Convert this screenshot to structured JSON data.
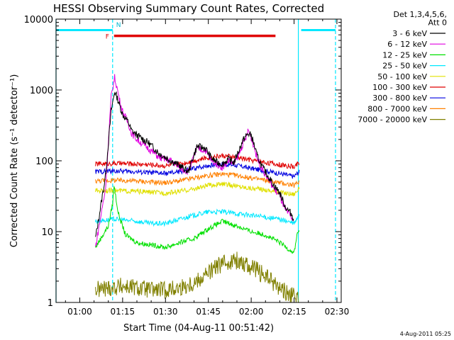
{
  "chart_data": {
    "type": "line",
    "title": "HESSI Observing Summary Count Rates, Corrected",
    "xlabel": "Start Time (04-Aug-11 00:51:42)",
    "ylabel": "Corrected Count Rate (s⁻¹ detector⁻¹)",
    "yscale": "log",
    "ylim": [
      1,
      10000
    ],
    "xlim_min": [
      51.7,
      151.5
    ],
    "xticks": [
      {
        "v": 60,
        "label": "01:00"
      },
      {
        "v": 75,
        "label": "01:15"
      },
      {
        "v": 90,
        "label": "01:30"
      },
      {
        "v": 105,
        "label": "01:45"
      },
      {
        "v": 120,
        "label": "02:00"
      },
      {
        "v": 135,
        "label": "02:15"
      },
      {
        "v": 150,
        "label": "02:30"
      }
    ],
    "yticks": [
      {
        "v": 1,
        "label": "1"
      },
      {
        "v": 10,
        "label": "10"
      },
      {
        "v": 100,
        "label": "100"
      },
      {
        "v": 1000,
        "label": "1000"
      },
      {
        "v": 10000,
        "label": "10000"
      }
    ],
    "legend_header": [
      "Det 1,3,4,5,6,",
      "Att 0"
    ],
    "legend_placement": "right",
    "series": [
      {
        "name": "3 - 6 keV",
        "color": "#000000",
        "x": [
          65.5,
          69,
          71,
          72.2,
          73,
          74,
          75,
          77,
          78,
          80,
          84,
          88,
          92,
          95,
          98,
          101,
          104,
          106,
          108,
          110,
          112,
          114,
          116,
          117,
          118,
          119,
          120,
          121,
          122,
          124,
          126,
          128,
          130,
          131,
          132,
          134,
          135
        ],
        "y": [
          8,
          60,
          500,
          950,
          800,
          600,
          450,
          350,
          270,
          230,
          180,
          125,
          100,
          85,
          70,
          160,
          150,
          110,
          95,
          90,
          105,
          95,
          150,
          190,
          220,
          240,
          230,
          170,
          120,
          80,
          60,
          45,
          35,
          28,
          22,
          18,
          15
        ]
      },
      {
        "name": "6 - 12 keV",
        "color": "#e100e1",
        "x": [
          65.5,
          69,
          71,
          72.2,
          73,
          74,
          75,
          77,
          78,
          80,
          84,
          88,
          92,
          95,
          98,
          101,
          104,
          106,
          108,
          110,
          112,
          114,
          116,
          117,
          118,
          119,
          120,
          121,
          122,
          124,
          126,
          128,
          130,
          131,
          132,
          134,
          135
        ],
        "y": [
          6,
          40,
          800,
          1500,
          1100,
          700,
          500,
          340,
          250,
          200,
          150,
          110,
          100,
          80,
          70,
          150,
          140,
          100,
          90,
          80,
          100,
          90,
          130,
          170,
          200,
          270,
          210,
          160,
          110,
          75,
          55,
          40,
          32,
          25,
          20,
          16,
          14
        ]
      },
      {
        "name": "12 - 25 keV",
        "color": "#00e000",
        "x": [
          65.5,
          70,
          71.5,
          72,
          73.5,
          76,
          80,
          85,
          90,
          95,
          100,
          105,
          110,
          115,
          120,
          125,
          130,
          135,
          136,
          137
        ],
        "y": [
          6,
          12,
          25,
          45,
          18,
          9,
          7,
          6.5,
          6,
          7,
          8,
          11,
          14,
          12,
          10,
          9,
          7,
          5,
          9,
          11
        ]
      },
      {
        "name": "25 - 50 keV",
        "color": "#00e8ff",
        "x": [
          65.5,
          72,
          80,
          85,
          90,
          95,
          100,
          105,
          110,
          115,
          120,
          125,
          130,
          135,
          136,
          137
        ],
        "y": [
          14,
          15,
          14,
          13,
          13,
          15,
          17,
          19,
          19,
          18,
          17,
          16,
          15,
          13,
          15,
          17
        ]
      },
      {
        "name": "50 - 100 keV",
        "color": "#e0e000",
        "x": [
          65.5,
          72,
          80,
          85,
          90,
          95,
          100,
          105,
          110,
          115,
          120,
          125,
          130,
          135,
          136,
          137
        ],
        "y": [
          38,
          38,
          37,
          36,
          35,
          37,
          40,
          45,
          47,
          44,
          41,
          39,
          36,
          34,
          38,
          40
        ]
      },
      {
        "name": "100 - 300 keV",
        "color": "#e00000",
        "x": [
          65.5,
          72,
          80,
          85,
          90,
          95,
          100,
          105,
          110,
          115,
          120,
          125,
          130,
          135,
          136,
          137
        ],
        "y": [
          90,
          92,
          90,
          88,
          85,
          90,
          100,
          112,
          118,
          112,
          102,
          95,
          88,
          82,
          90,
          95
        ]
      },
      {
        "name": "300 - 800 keV",
        "color": "#0000e0",
        "x": [
          65.5,
          72,
          80,
          85,
          90,
          95,
          100,
          105,
          110,
          115,
          120,
          125,
          130,
          135,
          136,
          137
        ],
        "y": [
          70,
          72,
          70,
          68,
          66,
          70,
          78,
          86,
          90,
          86,
          78,
          72,
          66,
          60,
          66,
          70
        ]
      },
      {
        "name": "800 - 7000 keV",
        "color": "#ff8000",
        "x": [
          65.5,
          72,
          80,
          85,
          90,
          95,
          100,
          105,
          110,
          115,
          120,
          125,
          130,
          135,
          136,
          137
        ],
        "y": [
          52,
          53,
          52,
          50,
          49,
          52,
          57,
          62,
          65,
          62,
          57,
          53,
          49,
          45,
          48,
          52
        ]
      },
      {
        "name": "7000 - 20000 keV",
        "color": "#808000",
        "x": [
          65.5,
          70,
          75,
          80,
          85,
          90,
          95,
          100,
          103,
          106,
          109,
          112,
          115,
          118,
          121,
          124,
          127,
          130,
          133,
          135,
          137
        ],
        "y": [
          1.5,
          1.6,
          1.7,
          1.6,
          1.5,
          1.5,
          1.6,
          1.9,
          2.3,
          2.8,
          3.4,
          3.8,
          3.9,
          3.5,
          3,
          2.5,
          2,
          1.6,
          1.3,
          1.2,
          1.1
        ]
      }
    ],
    "annotations": [
      {
        "label": "F",
        "x": 71.5,
        "y": 5300
      },
      {
        "label": "N",
        "x": 71.5,
        "y": 7800
      }
    ],
    "flare_bar": {
      "x": [
        72,
        128.5
      ],
      "y": 5800,
      "color": "#e00000"
    },
    "night_bars": [
      {
        "x": [
          51.7,
          71.5
        ],
        "y": 7000
      },
      {
        "x": [
          137.5,
          149.5
        ],
        "y": 7000
      }
    ],
    "night_lines": [
      {
        "x": 51.7,
        "style": "solid"
      },
      {
        "x": 71.5,
        "style": "dashed"
      },
      {
        "x": 136.5,
        "style": "solid"
      },
      {
        "x": 149.5,
        "style": "dashed"
      }
    ],
    "grid": false
  },
  "footer": {
    "date": "4-Aug-2011 05:25"
  }
}
